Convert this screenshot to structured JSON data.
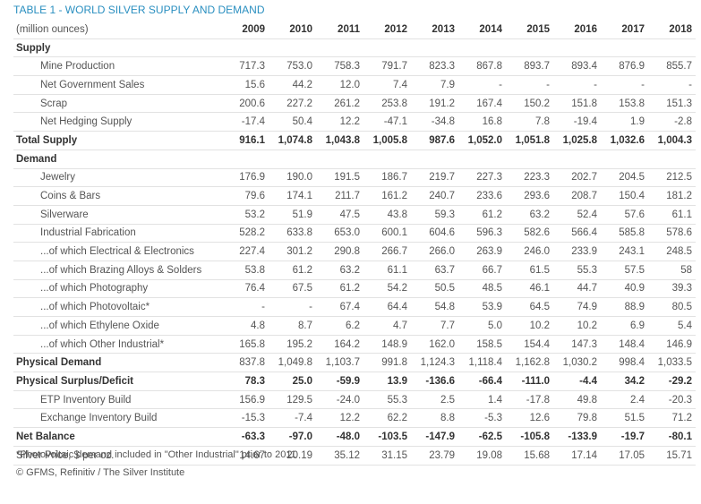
{
  "title": "TABLE 1 - WORLD SILVER SUPPLY AND DEMAND",
  "table": {
    "header": [
      "(million ounces)",
      "2009",
      "2010",
      "2011",
      "2012",
      "2013",
      "2014",
      "2015",
      "2016",
      "2017",
      "2018"
    ],
    "rows": [
      [
        "Supply"
      ],
      [
        "Mine Production",
        "717.3",
        "753.0",
        "758.3",
        "791.7",
        "823.3",
        "867.8",
        "893.7",
        "893.4",
        "876.9",
        "855.7"
      ],
      [
        "Net Government Sales",
        "15.6",
        "44.2",
        "12.0",
        "7.4",
        "7.9",
        "-",
        "-",
        "-",
        "-",
        "-"
      ],
      [
        "Scrap",
        "200.6",
        "227.2",
        "261.2",
        "253.8",
        "191.2",
        "167.4",
        "150.2",
        "151.8",
        "153.8",
        "151.3"
      ],
      [
        "Net Hedging Supply",
        "-17.4",
        "50.4",
        "12.2",
        "-47.1",
        "-34.8",
        "16.8",
        "7.8",
        "-19.4",
        "1.9",
        "-2.8"
      ],
      [
        "Total Supply",
        "916.1",
        "1,074.8",
        "1,043.8",
        "1,005.8",
        "987.6",
        "1,052.0",
        "1,051.8",
        "1,025.8",
        "1,032.6",
        "1,004.3"
      ],
      [
        "Demand"
      ],
      [
        "Jewelry",
        "176.9",
        "190.0",
        "191.5",
        "186.7",
        "219.7",
        "227.3",
        "223.3",
        "202.7",
        "204.5",
        "212.5"
      ],
      [
        "Coins & Bars",
        "79.6",
        "174.1",
        "211.7",
        "161.2",
        "240.7",
        "233.6",
        "293.6",
        "208.7",
        "150.4",
        "181.2"
      ],
      [
        "Silverware",
        "53.2",
        "51.9",
        "47.5",
        "43.8",
        "59.3",
        "61.2",
        "63.2",
        "52.4",
        "57.6",
        "61.1"
      ],
      [
        "Industrial Fabrication",
        "528.2",
        "633.8",
        "653.0",
        "600.1",
        "604.6",
        "596.3",
        "582.6",
        "566.4",
        "585.8",
        "578.6"
      ],
      [
        "...of which Electrical & Electronics",
        "227.4",
        "301.2",
        "290.8",
        "266.7",
        "266.0",
        "263.9",
        "246.0",
        "233.9",
        "243.1",
        "248.5"
      ],
      [
        "...of which Brazing Alloys & Solders",
        "53.8",
        "61.2",
        "63.2",
        "61.1",
        "63.7",
        "66.7",
        "61.5",
        "55.3",
        "57.5",
        "58"
      ],
      [
        "...of which Photography",
        "76.4",
        "67.5",
        "61.2",
        "54.2",
        "50.5",
        "48.5",
        "46.1",
        "44.7",
        "40.9",
        "39.3"
      ],
      [
        "...of which Photovoltaic*",
        "-",
        "-",
        "67.4",
        "64.4",
        "54.8",
        "53.9",
        "64.5",
        "74.9",
        "88.9",
        "80.5"
      ],
      [
        "...of which Ethylene Oxide",
        "4.8",
        "8.7",
        "6.2",
        "4.7",
        "7.7",
        "5.0",
        "10.2",
        "10.2",
        "6.9",
        "5.4"
      ],
      [
        "...of which Other Industrial*",
        "165.8",
        "195.2",
        "164.2",
        "148.9",
        "162.0",
        "158.5",
        "154.4",
        "147.3",
        "148.4",
        "146.9"
      ],
      [
        "Physical Demand",
        "837.8",
        "1,049.8",
        "1,103.7",
        "991.8",
        "1,124.3",
        "1,118.4",
        "1,162.8",
        "1,030.2",
        "998.4",
        "1,033.5"
      ],
      [
        "Physical Surplus/Deficit",
        "78.3",
        "25.0",
        "-59.9",
        "13.9",
        "-136.6",
        "-66.4",
        "-111.0",
        "-4.4",
        "34.2",
        "-29.2"
      ],
      [
        "ETP Inventory Build",
        "156.9",
        "129.5",
        "-24.0",
        "55.3",
        "2.5",
        "1.4",
        "-17.8",
        "49.8",
        "2.4",
        "-20.3"
      ],
      [
        "Exchange Inventory Build",
        "-15.3",
        "-7.4",
        "12.2",
        "62.2",
        "8.8",
        "-5.3",
        "12.6",
        "79.8",
        "51.5",
        "71.2"
      ],
      [
        "Net Balance",
        "-63.3",
        "-97.0",
        "-48.0",
        "-103.5",
        "-147.9",
        "-62.5",
        "-105.8",
        "-133.9",
        "-19.7",
        "-80.1"
      ],
      [
        "Silver Price, $ per oz.",
        "14.67",
        "20.19",
        "35.12",
        "31.15",
        "23.79",
        "19.08",
        "15.68",
        "17.14",
        "17.05",
        "15.71"
      ]
    ]
  },
  "footnotes": [
    "*Photovoltaic demand included in \"Other Industrial\" prior to 2011",
    "© GFMS, Refinitiv / The Silver Institute"
  ]
}
